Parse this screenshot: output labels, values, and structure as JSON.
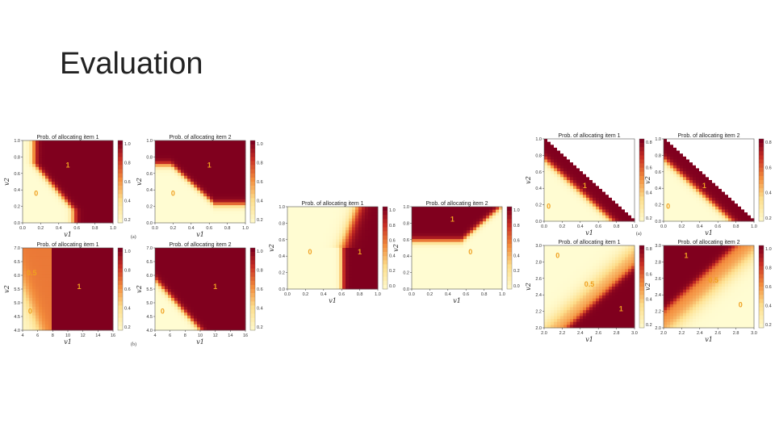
{
  "slide": {
    "title": "Evaluation"
  },
  "subfigure_labels": [
    {
      "id": "a-left",
      "text": "(a)"
    },
    {
      "id": "b-left",
      "text": "(b)"
    },
    {
      "id": "a-right",
      "text": "(a)"
    }
  ],
  "colorbar_ticks_a": [
    "1.0",
    "0.8",
    "0.6",
    "0.4",
    "0.2"
  ],
  "colorbar_ticks_b": [
    "0.8",
    "0.6",
    "0.4",
    "0.2"
  ],
  "colorbar_ticks_c": [
    "1.0",
    "0.8",
    "0.6",
    "0.4",
    "0.2",
    "0.0"
  ],
  "chart_data": [
    {
      "id": "p1",
      "type": "heatmap",
      "title": "Prob. of allocating item 1",
      "xlabel": "v1",
      "ylabel": "v2",
      "x_ticks": [
        "0.0",
        "0.2",
        "0.4",
        "0.6",
        "0.8",
        "1.0"
      ],
      "y_ticks": [
        "0.0",
        "0.2",
        "0.4",
        "0.6",
        "0.8",
        "1.0"
      ],
      "xlim": [
        0,
        1
      ],
      "ylim": [
        0,
        1
      ],
      "kind": "p1",
      "region_labels": [
        {
          "text": "1",
          "x": 0.5,
          "y": 0.67
        },
        {
          "text": "0",
          "x": 0.15,
          "y": 0.33
        }
      ]
    },
    {
      "id": "p2",
      "type": "heatmap",
      "title": "Prob. of allocating item 2",
      "xlabel": "v1",
      "ylabel": "v2",
      "x_ticks": [
        "0.0",
        "0.2",
        "0.4",
        "0.6",
        "0.8",
        "1.0"
      ],
      "y_ticks": [
        "0.0",
        "0.2",
        "0.4",
        "0.6",
        "0.8",
        "1.0"
      ],
      "xlim": [
        0,
        1
      ],
      "ylim": [
        0,
        1
      ],
      "kind": "p2",
      "region_labels": [
        {
          "text": "1",
          "x": 0.6,
          "y": 0.67
        },
        {
          "text": "0",
          "x": 0.2,
          "y": 0.33
        }
      ]
    },
    {
      "id": "p3",
      "type": "heatmap",
      "title": "Prob. of allocating item 1",
      "xlabel": "v1",
      "ylabel": "v2",
      "x_ticks": [
        "4",
        "6",
        "8",
        "10",
        "12",
        "14",
        "16"
      ],
      "y_ticks": [
        "4.0",
        "4.5",
        "5.0",
        "5.5",
        "6.0",
        "6.5",
        "7.0"
      ],
      "xlim": [
        4,
        16
      ],
      "ylim": [
        4,
        7
      ],
      "kind": "p3",
      "region_labels": [
        {
          "text": "0.5",
          "x": 5.2,
          "y": 6.0
        },
        {
          "text": "1",
          "x": 11.5,
          "y": 5.5
        },
        {
          "text": "0",
          "x": 5.0,
          "y": 4.6
        }
      ]
    },
    {
      "id": "p4",
      "type": "heatmap",
      "title": "Prob. of allocating item 2",
      "xlabel": "v1",
      "ylabel": "v2",
      "x_ticks": [
        "4",
        "6",
        "8",
        "10",
        "12",
        "14",
        "16"
      ],
      "y_ticks": [
        "4.0",
        "4.5",
        "5.0",
        "5.5",
        "6.0",
        "6.5",
        "7.0"
      ],
      "xlim": [
        4,
        16
      ],
      "ylim": [
        4,
        7
      ],
      "kind": "p4",
      "region_labels": [
        {
          "text": "1",
          "x": 12.0,
          "y": 5.5
        },
        {
          "text": "0",
          "x": 5.0,
          "y": 4.6
        }
      ]
    },
    {
      "id": "p5",
      "type": "heatmap",
      "title": "Prob. of allocating item 1",
      "xlabel": "v1",
      "ylabel": "v2",
      "x_ticks": [
        "0.0",
        "0.2",
        "0.4",
        "0.6",
        "0.8",
        "1.0"
      ],
      "y_ticks": [
        "0.0",
        "0.2",
        "0.4",
        "0.6",
        "0.8",
        "1.0"
      ],
      "xlim": [
        0,
        1
      ],
      "ylim": [
        0,
        1
      ],
      "kind": "p5",
      "region_labels": [
        {
          "text": "0",
          "x": 0.25,
          "y": 0.42
        },
        {
          "text": "1",
          "x": 0.8,
          "y": 0.42
        }
      ]
    },
    {
      "id": "p6",
      "type": "heatmap",
      "title": "Prob. of allocating item 2",
      "xlabel": "v1",
      "ylabel": "v2",
      "x_ticks": [
        "0.0",
        "0.2",
        "0.4",
        "0.6",
        "0.8",
        "1.0"
      ],
      "y_ticks": [
        "0.0",
        "0.2",
        "0.4",
        "0.6",
        "0.8",
        "1.0"
      ],
      "xlim": [
        0,
        1
      ],
      "ylim": [
        0,
        1
      ],
      "kind": "p6",
      "region_labels": [
        {
          "text": "1",
          "x": 0.45,
          "y": 0.82
        },
        {
          "text": "0",
          "x": 0.65,
          "y": 0.42
        }
      ]
    },
    {
      "id": "p7",
      "type": "heatmap",
      "title": "Prob. of allocating item 1",
      "xlabel": "v1",
      "ylabel": "v2",
      "x_ticks": [
        "0.0",
        "0.2",
        "0.4",
        "0.6",
        "0.8",
        "1.0"
      ],
      "y_ticks": [
        "0.0",
        "0.2",
        "0.4",
        "0.6",
        "0.8",
        "1.0"
      ],
      "xlim": [
        0,
        1
      ],
      "ylim": [
        0,
        1
      ],
      "kind": "p7",
      "region_labels": [
        {
          "text": "1",
          "x": 0.45,
          "y": 0.4
        },
        {
          "text": "0",
          "x": 0.05,
          "y": 0.15
        }
      ]
    },
    {
      "id": "p8",
      "type": "heatmap",
      "title": "Prob. of allocating item 2",
      "xlabel": "v1",
      "ylabel": "v2",
      "x_ticks": [
        "0.0",
        "0.2",
        "0.4",
        "0.6",
        "0.8",
        "1.0"
      ],
      "y_ticks": [
        "0.0",
        "0.2",
        "0.4",
        "0.6",
        "0.8",
        "1.0"
      ],
      "xlim": [
        0,
        1
      ],
      "ylim": [
        0,
        1
      ],
      "kind": "p7",
      "region_labels": [
        {
          "text": "1",
          "x": 0.45,
          "y": 0.4
        },
        {
          "text": "0",
          "x": 0.05,
          "y": 0.15
        }
      ]
    },
    {
      "id": "p9",
      "type": "heatmap",
      "title": "Prob. of allocating item 1",
      "xlabel": "v1",
      "ylabel": "v2",
      "x_ticks": [
        "2.0",
        "2.2",
        "2.4",
        "2.6",
        "2.8",
        "3.0"
      ],
      "y_ticks": [
        "2.0",
        "2.2",
        "2.4",
        "2.6",
        "2.8",
        "3.0"
      ],
      "xlim": [
        2,
        3
      ],
      "ylim": [
        2,
        3
      ],
      "kind": "p9",
      "region_labels": [
        {
          "text": "0",
          "x": 2.15,
          "y": 2.85
        },
        {
          "text": "0.5",
          "x": 2.5,
          "y": 2.5
        },
        {
          "text": "1",
          "x": 2.85,
          "y": 2.2
        }
      ]
    },
    {
      "id": "p10",
      "type": "heatmap",
      "title": "Prob. of allocating item 2",
      "xlabel": "v1",
      "ylabel": "v2",
      "x_ticks": [
        "2.0",
        "2.2",
        "2.4",
        "2.6",
        "2.8",
        "3.0"
      ],
      "y_ticks": [
        "2.0",
        "2.2",
        "2.4",
        "2.6",
        "2.8",
        "3.0"
      ],
      "xlim": [
        2,
        3
      ],
      "ylim": [
        2,
        3
      ],
      "kind": "p10",
      "region_labels": [
        {
          "text": "1",
          "x": 2.25,
          "y": 2.85
        },
        {
          "text": "0.5",
          "x": 2.55,
          "y": 2.55
        },
        {
          "text": "0",
          "x": 2.85,
          "y": 2.25
        }
      ]
    }
  ]
}
